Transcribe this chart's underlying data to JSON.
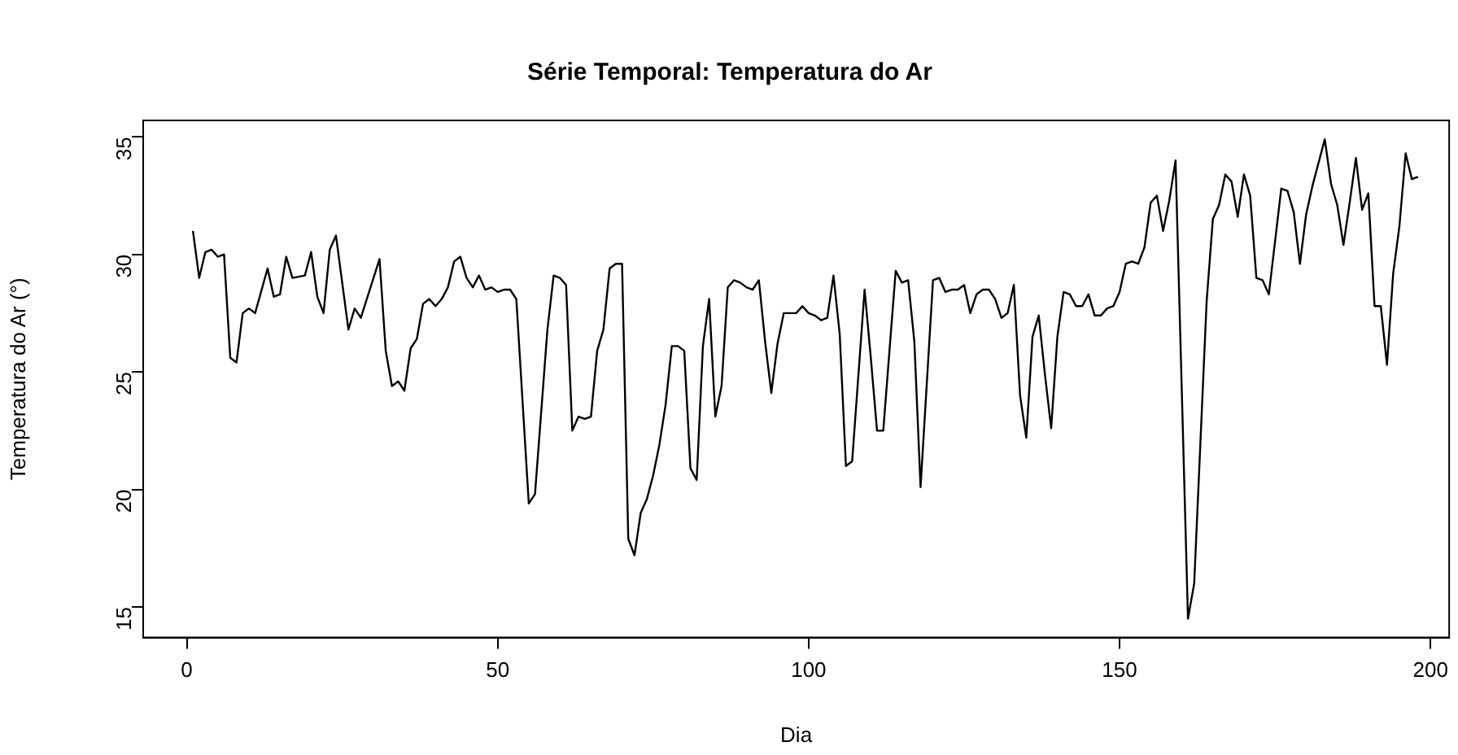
{
  "chart_data": {
    "type": "line",
    "title": "Série Temporal: Temperatura do Ar",
    "xlabel": "Dia",
    "ylabel": "Temperatura do Ar (°)",
    "xlim": [
      -7,
      203
    ],
    "xticks": [
      0,
      50,
      100,
      150,
      200
    ],
    "ylim": [
      13.7,
      35.7
    ],
    "yticks": [
      15,
      20,
      25,
      30,
      35
    ],
    "grid": false,
    "legend": false,
    "marker": "none",
    "line_style": "solid",
    "series": [
      {
        "color": "#000000",
        "x": [
          1,
          2,
          3,
          4,
          5,
          6,
          7,
          8,
          9,
          10,
          11,
          13,
          14,
          15,
          16,
          17,
          19,
          20,
          21,
          22,
          23,
          24,
          26,
          27,
          28,
          31,
          32,
          33,
          34,
          35,
          36,
          37,
          38,
          39,
          40,
          41,
          42,
          43,
          44,
          45,
          46,
          47,
          48,
          49,
          50,
          51,
          52,
          53,
          55,
          56,
          58,
          59,
          60,
          61,
          62,
          63,
          64,
          65,
          66,
          67,
          68,
          69,
          70,
          71,
          72,
          73,
          74,
          75,
          76,
          77,
          78,
          79,
          80,
          81,
          82,
          83,
          84,
          85,
          86,
          87,
          88,
          89,
          90,
          91,
          92,
          93,
          94,
          95,
          96,
          97,
          98,
          99,
          100,
          101,
          102,
          103,
          104,
          105,
          106,
          107,
          109,
          110,
          111,
          112,
          114,
          115,
          116,
          117,
          118,
          119,
          120,
          121,
          122,
          123,
          124,
          125,
          126,
          127,
          128,
          129,
          130,
          131,
          132,
          133,
          134,
          135,
          136,
          137,
          138,
          139,
          140,
          141,
          142,
          143,
          144,
          145,
          146,
          147,
          148,
          149,
          150,
          151,
          152,
          153,
          154,
          155,
          156,
          157,
          158,
          159,
          161,
          162,
          163,
          164,
          165,
          166,
          167,
          168,
          169,
          170,
          171,
          172,
          173,
          174,
          176,
          177,
          178,
          179,
          180,
          181,
          183,
          184,
          185,
          186,
          187,
          188,
          189,
          190,
          191,
          192,
          193,
          194,
          195,
          196,
          197,
          198
        ],
        "values": [
          31.0,
          29.0,
          30.1,
          30.2,
          29.9,
          30.0,
          25.6,
          25.4,
          27.5,
          27.7,
          27.5,
          29.4,
          28.2,
          28.3,
          29.9,
          29.0,
          29.1,
          30.1,
          28.2,
          27.5,
          30.2,
          30.8,
          26.8,
          27.7,
          27.3,
          29.8,
          25.9,
          24.4,
          24.6,
          24.2,
          26.0,
          26.4,
          27.9,
          28.1,
          27.8,
          28.1,
          28.6,
          29.7,
          29.9,
          29.0,
          28.6,
          29.1,
          28.5,
          28.6,
          28.4,
          28.5,
          28.5,
          28.1,
          19.4,
          19.8,
          26.8,
          29.1,
          29.0,
          28.7,
          22.5,
          23.1,
          23.0,
          23.1,
          25.9,
          26.8,
          29.4,
          29.6,
          29.6,
          17.9,
          17.2,
          19.0,
          19.6,
          20.6,
          21.9,
          23.6,
          26.1,
          26.1,
          25.9,
          20.9,
          20.4,
          26.1,
          28.1,
          23.1,
          24.4,
          28.6,
          28.9,
          28.8,
          28.6,
          28.5,
          28.9,
          26.3,
          24.1,
          26.2,
          27.5,
          27.5,
          27.5,
          27.8,
          27.5,
          27.4,
          27.2,
          27.3,
          29.1,
          26.6,
          21.0,
          21.2,
          28.5,
          25.6,
          22.5,
          22.5,
          29.3,
          28.8,
          28.9,
          26.3,
          20.1,
          24.5,
          28.9,
          29.0,
          28.4,
          28.5,
          28.5,
          28.7,
          27.5,
          28.3,
          28.5,
          28.5,
          28.1,
          27.3,
          27.5,
          28.7,
          24.0,
          22.2,
          26.5,
          27.4,
          24.9,
          22.6,
          26.5,
          28.4,
          28.3,
          27.8,
          27.8,
          28.3,
          27.4,
          27.4,
          27.7,
          27.8,
          28.4,
          29.6,
          29.7,
          29.6,
          30.3,
          32.2,
          32.5,
          31.0,
          32.3,
          34.0,
          14.5,
          16.0,
          22.0,
          28.0,
          31.5,
          32.1,
          33.4,
          33.1,
          31.6,
          33.4,
          32.5,
          29.0,
          28.9,
          28.3,
          32.8,
          32.7,
          31.8,
          29.6,
          31.7,
          32.9,
          34.9,
          33.0,
          32.1,
          30.4,
          32.2,
          34.1,
          31.9,
          32.6,
          27.8,
          27.8,
          25.3,
          29.2,
          31.2,
          34.3,
          33.2,
          33.3
        ]
      }
    ]
  }
}
